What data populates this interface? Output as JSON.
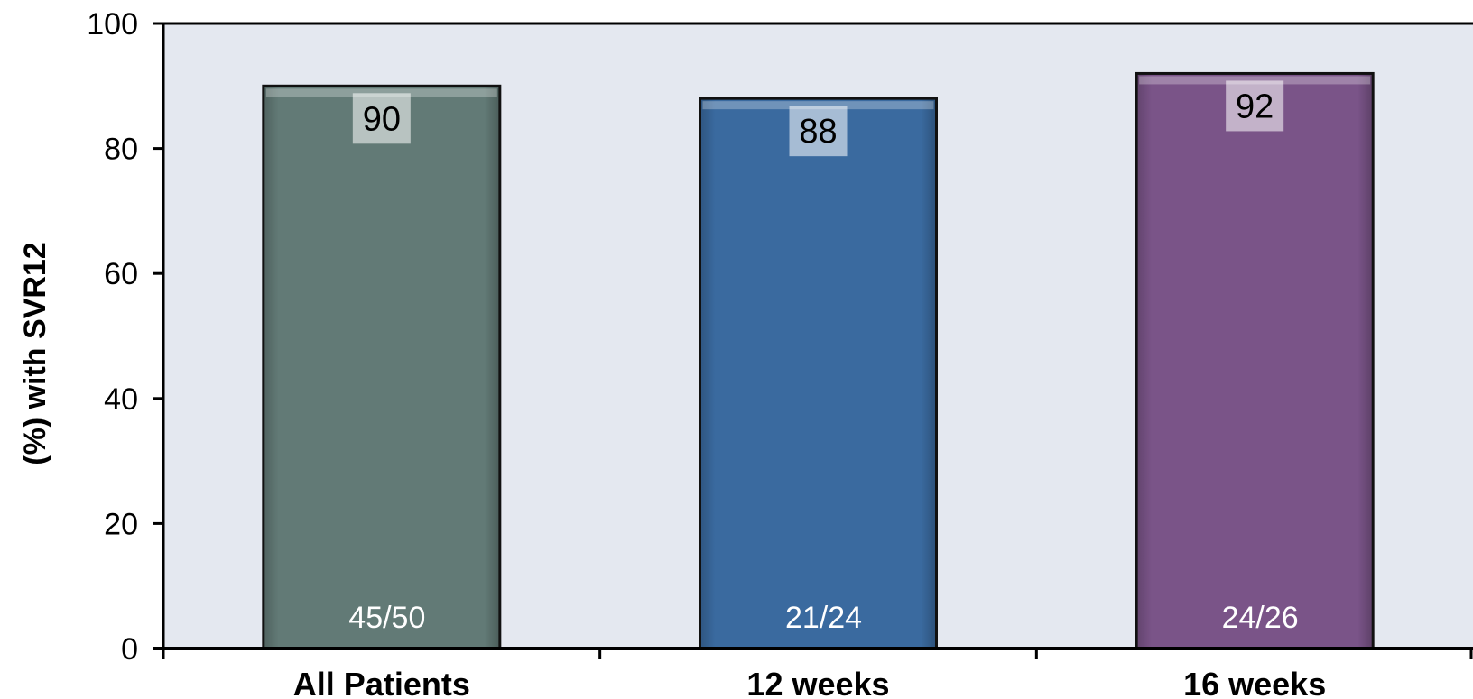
{
  "chart_data": {
    "type": "bar",
    "title": "",
    "xlabel": "",
    "ylabel": "(%) with SVR12",
    "ylim": [
      0,
      100
    ],
    "yticks": [
      0,
      20,
      40,
      60,
      80,
      100
    ],
    "categories": [
      "All Patients",
      "12 weeks",
      "16 weeks"
    ],
    "values": [
      90,
      88,
      92
    ],
    "value_labels": [
      "90",
      "88",
      "92"
    ],
    "count_labels": [
      "45/50",
      "21/24",
      "24/26"
    ],
    "colors": [
      "#627a76",
      "#3a6a9f",
      "#7a5488"
    ],
    "plot_background": "#e4e8f0",
    "grid": false,
    "legend": "none"
  }
}
